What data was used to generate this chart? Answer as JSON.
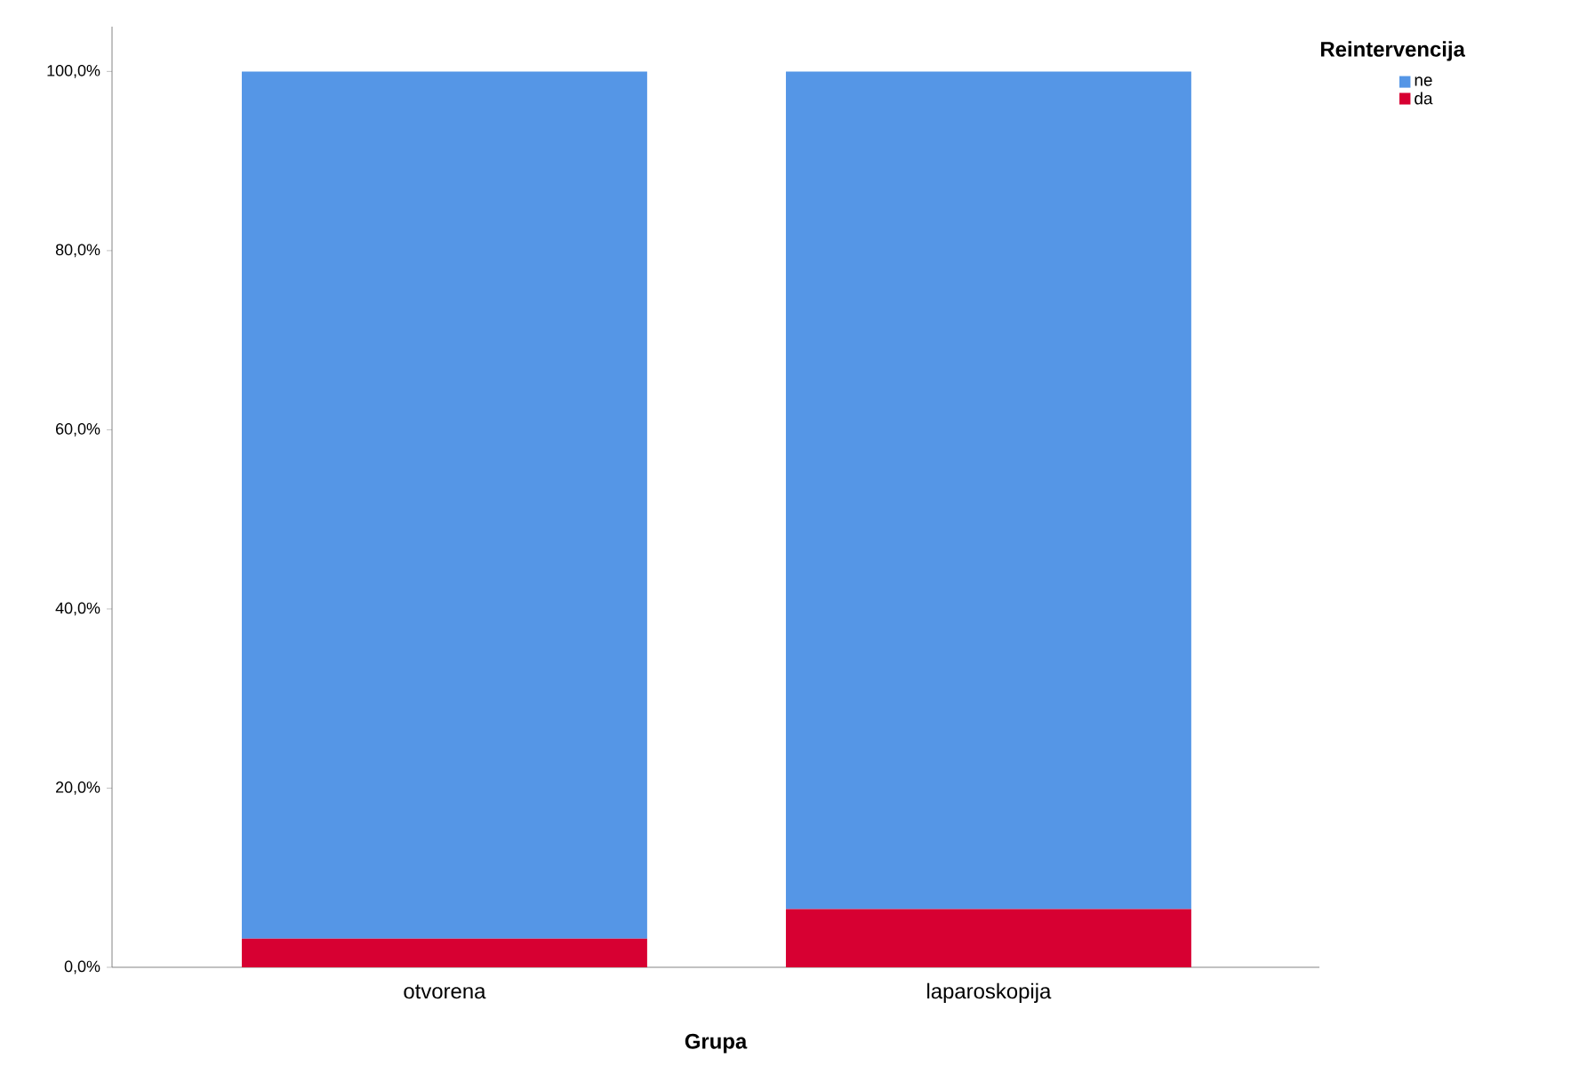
{
  "chart_data": {
    "type": "bar",
    "stacked": true,
    "xlabel": "Grupa",
    "legend_title": "Reintervencija",
    "legend": "top right",
    "categories": [
      "otvorena",
      "laparoskopija"
    ],
    "series": [
      {
        "name": "da",
        "color": "#d70032",
        "values": [
          3.2,
          6.5
        ]
      },
      {
        "name": "ne",
        "color": "#5596e6",
        "values": [
          96.8,
          93.5
        ]
      }
    ],
    "ylim": [
      0,
      105
    ],
    "yticks": [
      {
        "value": 0,
        "label": "0,0%"
      },
      {
        "value": 20,
        "label": "20,0%"
      },
      {
        "value": 40,
        "label": "40,0%"
      },
      {
        "value": 60,
        "label": "60,0%"
      },
      {
        "value": 80,
        "label": "80,0%"
      },
      {
        "value": 100,
        "label": "100,0%"
      }
    ],
    "grid": false
  }
}
